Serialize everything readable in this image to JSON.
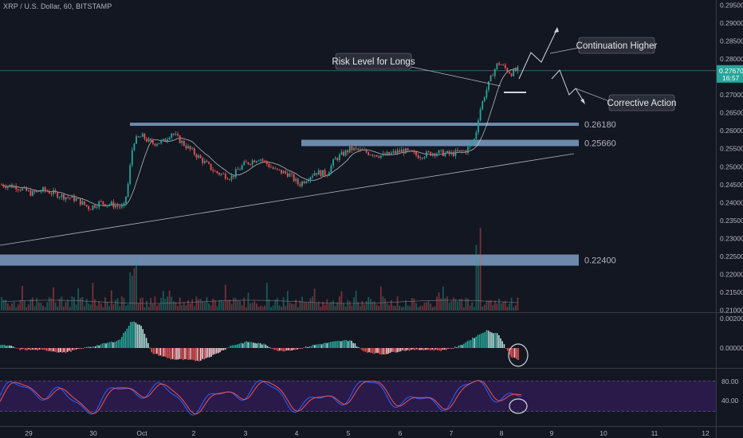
{
  "header": {
    "title": "XRP / U.S. Dollar, 60, BITSTAMP"
  },
  "colors": {
    "background": "#131722",
    "up": "#26a69a",
    "down": "#ef5350",
    "level_band": "#7e9fc4",
    "osc_up": "#b2dfdb",
    "osc_up_strong": "#26a69a",
    "osc_down": "#ef5350",
    "osc_down_light": "#ffcdd2",
    "stoch_fill": "#2a1a4a",
    "stoch_k": "#2962ff",
    "stoch_d": "#ef5350",
    "price_tag": "#26a69a",
    "callout_bg": "#2a2e39"
  },
  "chart_data": {
    "type": "candlestick",
    "price_axis": {
      "ylim": [
        0.2095,
        0.2955
      ],
      "ticks": [
        "0.29500",
        "0.29000",
        "0.28500",
        "0.28000",
        "0.27500",
        "0.27000",
        "0.26500",
        "0.26000",
        "0.25500",
        "0.25000",
        "0.24500",
        "0.24000",
        "0.23500",
        "0.23000",
        "0.22500",
        "0.22000",
        "0.21500",
        "0.21000"
      ]
    },
    "time_axis": {
      "labels": [
        "29",
        "30",
        "Oct",
        "2",
        "3",
        "4",
        "5",
        "6",
        "7",
        "8",
        "9",
        "10",
        "11",
        "12"
      ]
    },
    "current_price": {
      "value": 0.2767,
      "label": "0.27670",
      "countdown": "16:57"
    },
    "levels": [
      {
        "name": "upper-resistance",
        "value": 0.2618,
        "label": "0.26180"
      },
      {
        "name": "breakout-zone",
        "value": 0.2566,
        "label": "0.25660"
      },
      {
        "name": "lower-support",
        "value": 0.224,
        "label": "0.22400"
      }
    ],
    "callouts": [
      {
        "name": "risk-level",
        "text": "Risk Level for Longs"
      },
      {
        "name": "continuation-higher",
        "text": "Continuation Higher"
      },
      {
        "name": "corrective-action",
        "text": "Corrective Action"
      }
    ],
    "macd_axis": {
      "ticks": [
        "0.00200",
        "0.00000"
      ]
    },
    "stoch_axis": {
      "ticks": [
        "80.00",
        "40.00"
      ]
    }
  }
}
